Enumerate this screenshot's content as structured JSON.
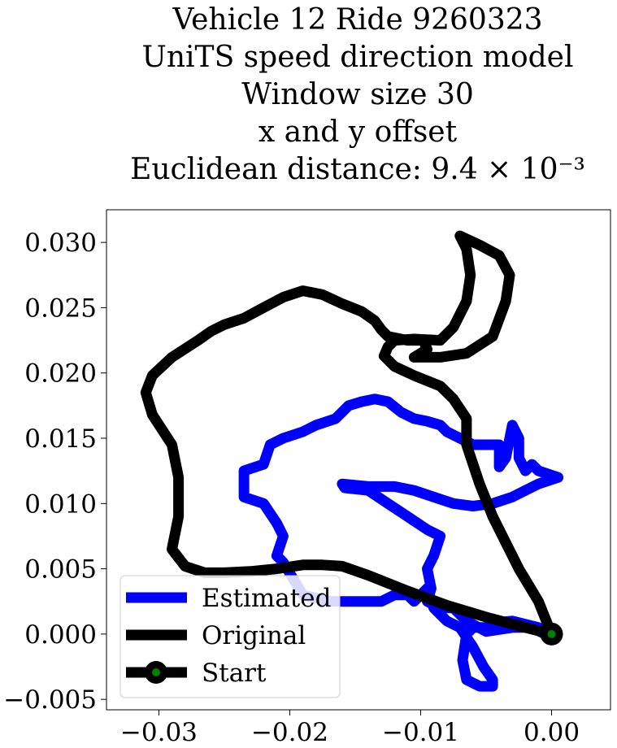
{
  "chart_data": {
    "type": "line",
    "title_lines": [
      "Vehicle 12 Ride 9260323",
      "UniTS speed direction model",
      "Window size 30",
      "x and y offset",
      "Euclidean distance: 9.4 × 10⁻³"
    ],
    "xlabel": "",
    "ylabel": "",
    "xlim": [
      -0.034,
      0.0045
    ],
    "ylim": [
      -0.0058,
      0.0325
    ],
    "x_ticks": [
      -0.03,
      -0.02,
      -0.01,
      0.0
    ],
    "x_tick_labels": [
      "−0.03",
      "−0.02",
      "−0.01",
      "0.00"
    ],
    "y_ticks": [
      -0.005,
      0.0,
      0.005,
      0.01,
      0.015,
      0.02,
      0.025,
      0.03
    ],
    "y_tick_labels": [
      "−0.005",
      "0.000",
      "0.005",
      "0.010",
      "0.015",
      "0.020",
      "0.025",
      "0.030"
    ],
    "grid": false,
    "legend_position": "lower-left",
    "series": [
      {
        "name": "Estimated",
        "color": "#0000ff",
        "points": [
          [
            0.0,
            0.0
          ],
          [
            -0.001,
            0.0005
          ],
          [
            -0.003,
            0.001
          ],
          [
            -0.004,
            0.0009
          ],
          [
            -0.005,
            0.0005
          ],
          [
            -0.006,
            0.0005
          ],
          [
            -0.0065,
            0.0
          ],
          [
            -0.0068,
            -0.002
          ],
          [
            -0.0065,
            -0.0035
          ],
          [
            -0.0055,
            -0.004
          ],
          [
            -0.0045,
            -0.004
          ],
          [
            -0.0045,
            -0.0035
          ],
          [
            -0.0052,
            -0.0025
          ],
          [
            -0.006,
            -0.001
          ],
          [
            -0.007,
            0.0005
          ],
          [
            -0.008,
            0.001
          ],
          [
            -0.009,
            0.002
          ],
          [
            -0.0095,
            0.0035
          ],
          [
            -0.0105,
            0.0025
          ],
          [
            -0.011,
            0.003
          ],
          [
            -0.012,
            0.003
          ],
          [
            -0.013,
            0.0025
          ],
          [
            -0.015,
            0.0025
          ],
          [
            -0.017,
            0.0025
          ],
          [
            -0.019,
            0.003
          ],
          [
            -0.0205,
            0.0055
          ],
          [
            -0.021,
            0.006
          ],
          [
            -0.0205,
            0.0075
          ],
          [
            -0.021,
            0.0085
          ],
          [
            -0.022,
            0.01
          ],
          [
            -0.0235,
            0.0105
          ],
          [
            -0.0235,
            0.0115
          ],
          [
            -0.0235,
            0.0125
          ],
          [
            -0.022,
            0.013
          ],
          [
            -0.0215,
            0.0145
          ],
          [
            -0.0205,
            0.015
          ],
          [
            -0.019,
            0.0155
          ],
          [
            -0.018,
            0.016
          ],
          [
            -0.0165,
            0.0165
          ],
          [
            -0.0155,
            0.0175
          ],
          [
            -0.0145,
            0.0178
          ],
          [
            -0.0135,
            0.018
          ],
          [
            -0.0125,
            0.0178
          ],
          [
            -0.0115,
            0.017
          ],
          [
            -0.0105,
            0.0165
          ],
          [
            -0.0095,
            0.0163
          ],
          [
            -0.0085,
            0.016
          ],
          [
            -0.008,
            0.0155
          ],
          [
            -0.007,
            0.015
          ],
          [
            -0.006,
            0.0145
          ],
          [
            -0.005,
            0.0145
          ],
          [
            -0.004,
            0.0145
          ],
          [
            -0.004,
            0.0128
          ],
          [
            -0.0035,
            0.0135
          ],
          [
            -0.003,
            0.016
          ],
          [
            -0.0025,
            0.015
          ],
          [
            -0.0025,
            0.0135
          ],
          [
            -0.002,
            0.0125
          ],
          [
            -0.0015,
            0.013
          ],
          [
            -0.001,
            0.0125
          ],
          [
            0.0005,
            0.012
          ],
          [
            -0.001,
            0.0115
          ],
          [
            -0.002,
            0.011
          ],
          [
            -0.003,
            0.0105
          ],
          [
            -0.0045,
            0.01
          ],
          [
            -0.006,
            0.0098
          ],
          [
            -0.0075,
            0.01
          ],
          [
            -0.009,
            0.0105
          ],
          [
            -0.0105,
            0.011
          ],
          [
            -0.012,
            0.0113
          ],
          [
            -0.014,
            0.0113
          ],
          [
            -0.016,
            0.0115
          ],
          [
            -0.0158,
            0.0112
          ],
          [
            -0.014,
            0.011
          ],
          [
            -0.0125,
            0.01
          ],
          [
            -0.011,
            0.009
          ],
          [
            -0.0095,
            0.008
          ],
          [
            -0.0085,
            0.0075
          ],
          [
            -0.009,
            0.006
          ],
          [
            -0.0095,
            0.005
          ],
          [
            -0.0092,
            0.0035
          ],
          [
            -0.0095,
            0.0025
          ],
          [
            -0.0085,
            0.002
          ],
          [
            -0.0075,
            0.002
          ],
          [
            -0.0065,
            0.001
          ],
          [
            -0.005,
            0.0002
          ],
          [
            -0.003,
            0.0005
          ],
          [
            -0.0015,
            0.0005
          ],
          [
            -0.0005,
            0.0
          ],
          [
            0.0,
            0.0
          ]
        ]
      },
      {
        "name": "Original",
        "color": "#000000",
        "points": [
          [
            0.0,
            0.0
          ],
          [
            -0.002,
            0.0005
          ],
          [
            -0.005,
            0.0013
          ],
          [
            -0.008,
            0.0022
          ],
          [
            -0.011,
            0.0033
          ],
          [
            -0.014,
            0.0045
          ],
          [
            -0.016,
            0.0052
          ],
          [
            -0.0175,
            0.0053
          ],
          [
            -0.019,
            0.0053
          ],
          [
            -0.021,
            0.005
          ],
          [
            -0.023,
            0.0048
          ],
          [
            -0.025,
            0.0047
          ],
          [
            -0.0265,
            0.0047
          ],
          [
            -0.028,
            0.0052
          ],
          [
            -0.029,
            0.0065
          ],
          [
            -0.0285,
            0.009
          ],
          [
            -0.0285,
            0.012
          ],
          [
            -0.029,
            0.0145
          ],
          [
            -0.0305,
            0.0168
          ],
          [
            -0.031,
            0.0185
          ],
          [
            -0.0305,
            0.0198
          ],
          [
            -0.029,
            0.0212
          ],
          [
            -0.027,
            0.0225
          ],
          [
            -0.026,
            0.0232
          ],
          [
            -0.025,
            0.0237
          ],
          [
            -0.0235,
            0.0242
          ],
          [
            -0.022,
            0.025
          ],
          [
            -0.0205,
            0.0258
          ],
          [
            -0.019,
            0.0263
          ],
          [
            -0.0175,
            0.026
          ],
          [
            -0.016,
            0.0253
          ],
          [
            -0.0145,
            0.0247
          ],
          [
            -0.0135,
            0.024
          ],
          [
            -0.013,
            0.0233
          ],
          [
            -0.0125,
            0.0228
          ],
          [
            -0.011,
            0.0225
          ],
          [
            -0.0098,
            0.0225
          ],
          [
            -0.0095,
            0.0218
          ],
          [
            -0.0105,
            0.0212
          ],
          [
            -0.0085,
            0.0212
          ],
          [
            -0.0065,
            0.0215
          ],
          [
            -0.0045,
            0.0228
          ],
          [
            -0.0035,
            0.0255
          ],
          [
            -0.0032,
            0.0275
          ],
          [
            -0.004,
            0.029
          ],
          [
            -0.0055,
            0.0298
          ],
          [
            -0.007,
            0.0305
          ],
          [
            -0.0065,
            0.0295
          ],
          [
            -0.0062,
            0.0275
          ],
          [
            -0.0065,
            0.0255
          ],
          [
            -0.0075,
            0.0235
          ],
          [
            -0.0085,
            0.0225
          ],
          [
            -0.0105,
            0.0226
          ],
          [
            -0.012,
            0.0225
          ],
          [
            -0.0125,
            0.022
          ],
          [
            -0.0128,
            0.0213
          ],
          [
            -0.012,
            0.0205
          ],
          [
            -0.0105,
            0.0198
          ],
          [
            -0.0085,
            0.019
          ],
          [
            -0.0075,
            0.018
          ],
          [
            -0.0065,
            0.0165
          ],
          [
            -0.0065,
            0.0145
          ],
          [
            -0.0055,
            0.0115
          ],
          [
            -0.0045,
            0.009
          ],
          [
            -0.0035,
            0.007
          ],
          [
            -0.0025,
            0.005
          ],
          [
            -0.001,
            0.0025
          ],
          [
            0.0,
            0.0
          ]
        ]
      }
    ],
    "start_point": {
      "name": "Start",
      "x": 0.0,
      "y": 0.0,
      "marker_color": "#008000",
      "edge_color": "#000000"
    }
  }
}
